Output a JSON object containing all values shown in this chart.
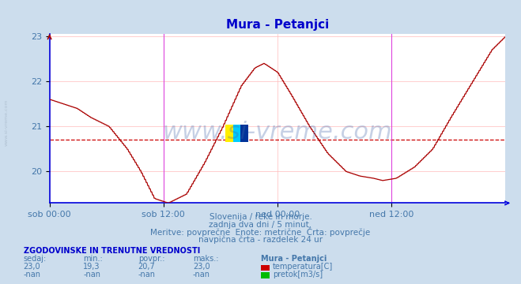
{
  "title": "Mura - Petanjci",
  "title_color": "#0000cc",
  "bg_color": "#ccdded",
  "plot_bg_color": "#ffffff",
  "grid_color": "#ffbbbb",
  "axis_color": "#0000dd",
  "text_color": "#4477aa",
  "watermark": "www.si-vreme.com",
  "watermark_color": "#4466aa",
  "avg_line": 20.7,
  "avg_line_color": "#cc0000",
  "line_color": "#aa0000",
  "xtick_labels": [
    "sob 00:00",
    "sob 12:00",
    "ned 00:00",
    "ned 12:00"
  ],
  "xtick_positions": [
    0.0,
    0.25,
    0.5,
    0.75
  ],
  "vline_positions": [
    0.25,
    0.75
  ],
  "vline_color": "#dd44dd",
  "sub_text1": "Slovenija / reke in morje.",
  "sub_text2": "zadnja dva dni / 5 minut.",
  "sub_text3": "Meritve: povprečne  Enote: metrične  Črta: povprečje",
  "sub_text4": "navpična črta - razdelek 24 ur",
  "legend_title": "ZGODOVINSKE IN TRENUTNE VREDNOSTI",
  "legend_col1": "sedaj:",
  "legend_col2": "min.:",
  "legend_col3": "povpr.:",
  "legend_col4": "maks.:",
  "legend_col5": "Mura - Petanjci",
  "row1_values": [
    "23,0",
    "19,3",
    "20,7",
    "23,0"
  ],
  "row2_values": [
    "-nan",
    "-nan",
    "-nan",
    "-nan"
  ],
  "legend_temp_label": "temperatura[C]",
  "legend_flow_label": "pretok[m3/s]",
  "temp_legend_color": "#cc0000",
  "flow_legend_color": "#00bb00",
  "n_points": 576,
  "ylim_low": 19.3,
  "ylim_high": 23.05,
  "yticks": [
    20,
    21,
    22,
    23
  ],
  "logo_colors": [
    "#ffee00",
    "#00ccff",
    "#003399"
  ],
  "logo_t": 0.385,
  "logo_val": 20.85,
  "sidebar_text": "www.si-vreme.com",
  "sidebar_color": "#aabbcc"
}
